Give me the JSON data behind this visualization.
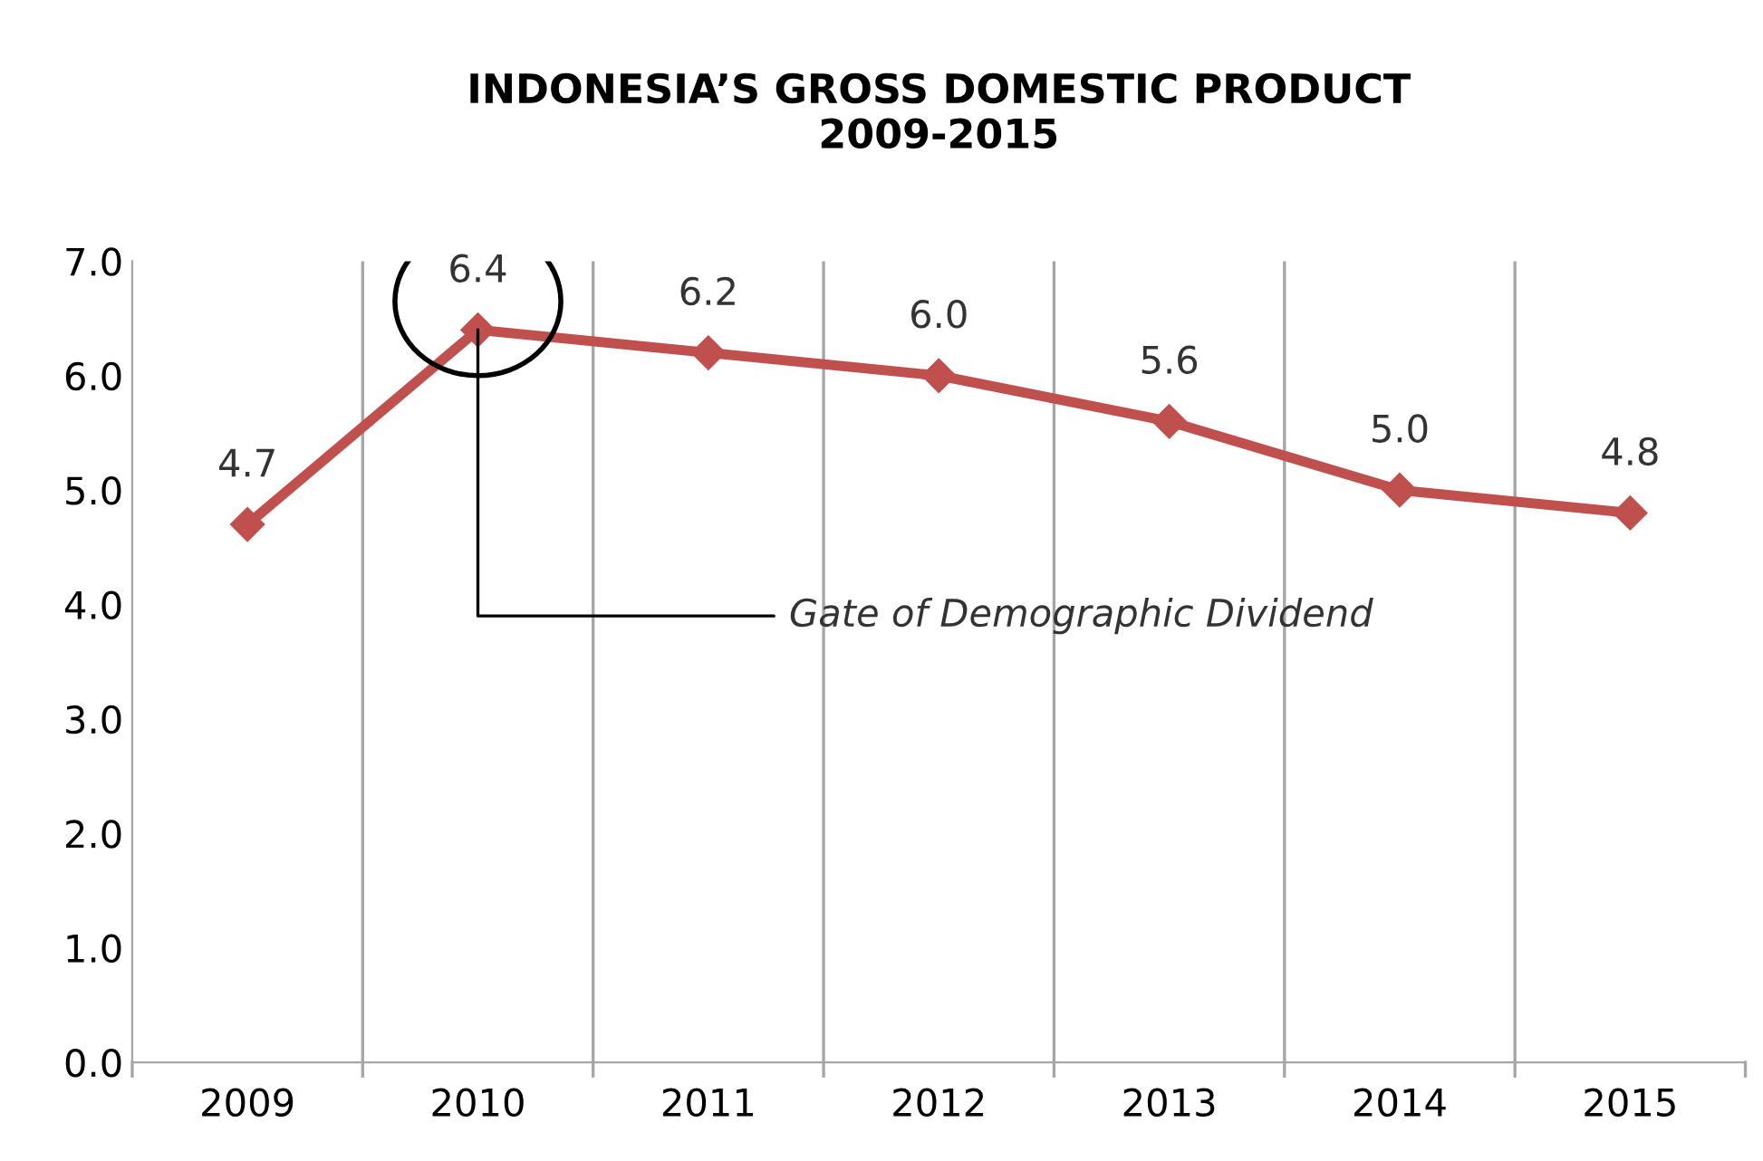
{
  "chart_data": {
    "type": "line",
    "title": "INDONESIA’S GROSS DOMESTIC PRODUCT\n2009-2015",
    "categories": [
      "2009",
      "2010",
      "2011",
      "2012",
      "2013",
      "2014",
      "2015"
    ],
    "series": [
      {
        "color": "#c0504d",
        "values": [
          4.7,
          6.4,
          6.2,
          6.0,
          5.6,
          5.0,
          4.8
        ],
        "value_labels": [
          "4.7",
          "6.4",
          "6.2",
          "6.0",
          "5.6",
          "5.0",
          "4.8"
        ]
      }
    ],
    "ylim": [
      0,
      7
    ],
    "yticks": [
      {
        "value": 0,
        "label": "0.0"
      },
      {
        "value": 1,
        "label": "1.0"
      },
      {
        "value": 2,
        "label": "2.0"
      },
      {
        "value": 3,
        "label": "3.0"
      },
      {
        "value": 4,
        "label": "4.0"
      },
      {
        "value": 5,
        "label": "5.0"
      },
      {
        "value": 6,
        "label": "6.0"
      },
      {
        "value": 7,
        "label": "7.0"
      }
    ],
    "grid": "x",
    "marker": "diamond",
    "line_style": "solid",
    "annotations": [
      {
        "text": "Gate of Demographic Dividend",
        "x": "2010",
        "y": 6.4
      }
    ]
  }
}
